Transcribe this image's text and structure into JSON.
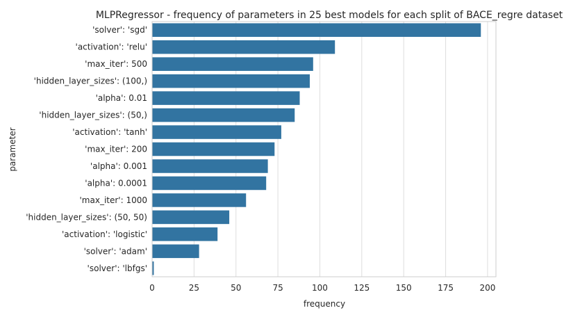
{
  "chart_data": {
    "type": "bar",
    "orientation": "horizontal",
    "title": "MLPRegressor - frequency of parameters in 25 best models for each split of BACE_regre dataset",
    "xlabel": "frequency",
    "ylabel": "parameter",
    "xlim": [
      0,
      205
    ],
    "xticks": [
      0,
      25,
      50,
      75,
      100,
      125,
      150,
      175,
      200
    ],
    "grid": "vertical",
    "bar_color": "#3274a1",
    "categories": [
      "'solver': 'sgd'",
      "'activation': 'relu'",
      "'max_iter': 500",
      "'hidden_layer_sizes': (100,)",
      "'alpha': 0.01",
      "'hidden_layer_sizes': (50,)",
      "'activation': 'tanh'",
      "'max_iter': 200",
      "'alpha': 0.001",
      "'alpha': 0.0001",
      "'max_iter': 1000",
      "'hidden_layer_sizes': (50, 50)",
      "'activation': 'logistic'",
      "'solver': 'adam'",
      "'solver': 'lbfgs'"
    ],
    "values": [
      196,
      109,
      96,
      94,
      88,
      85,
      77,
      73,
      69,
      68,
      56,
      46,
      39,
      28,
      1
    ]
  }
}
